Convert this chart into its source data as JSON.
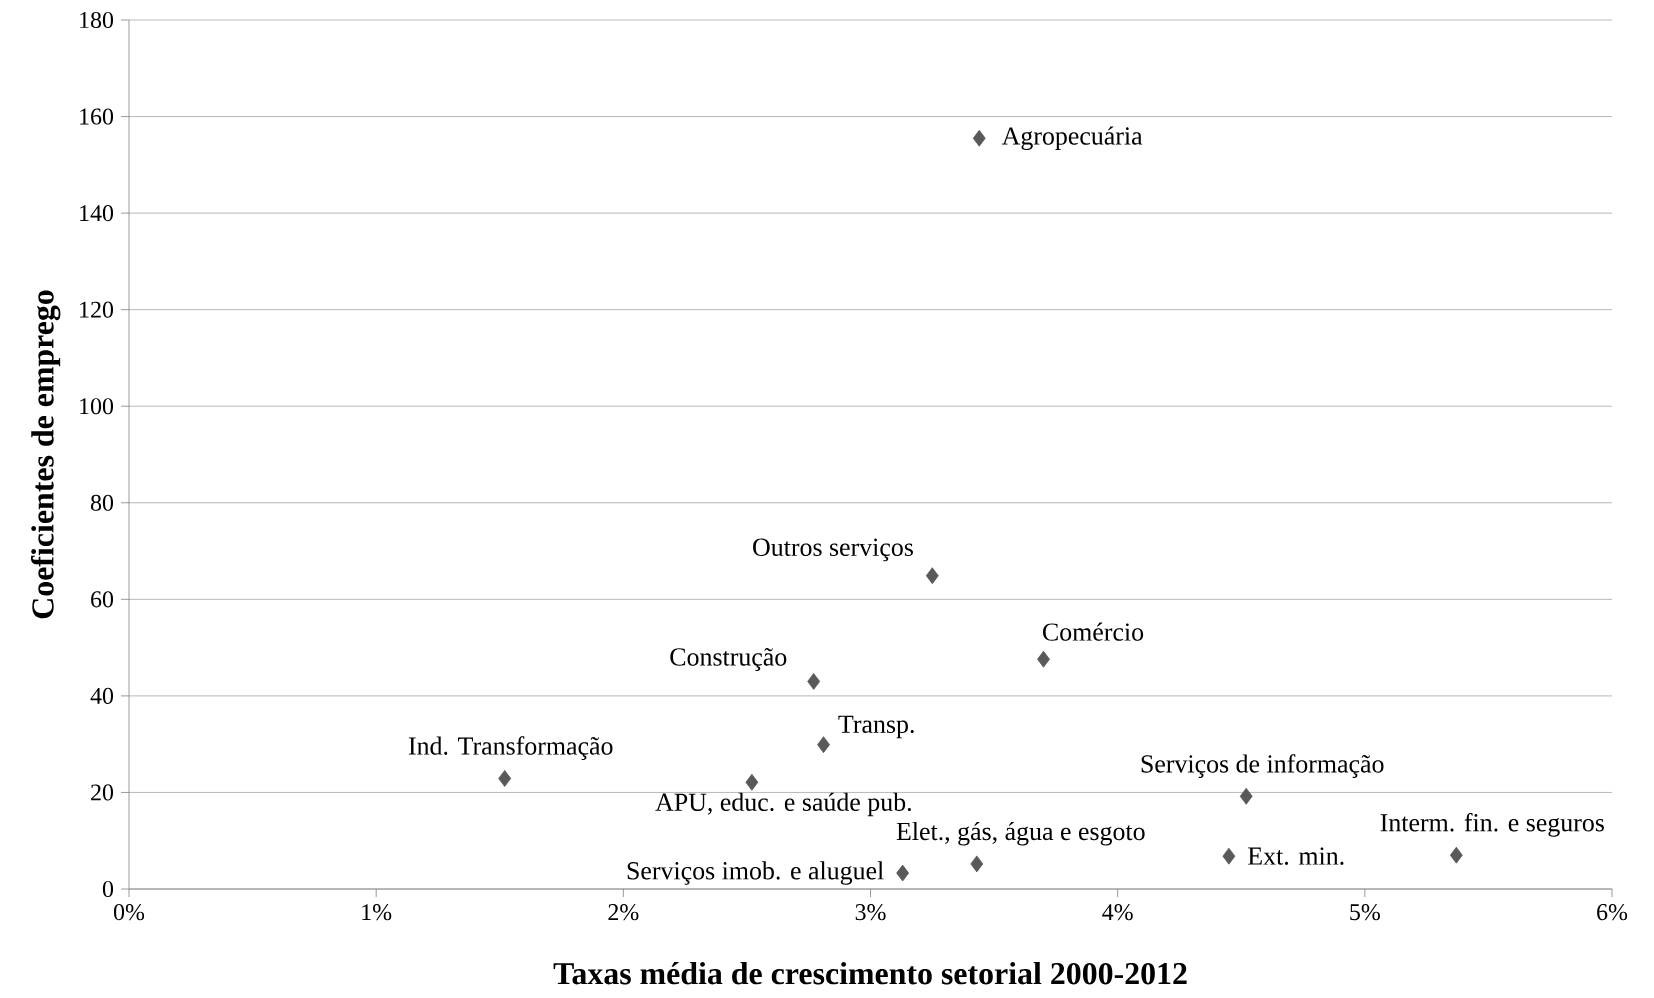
{
  "chart_data": {
    "type": "scatter",
    "xlabel": "Taxas média de crescimento setorial 2000-2012",
    "ylabel": "Coeficientes de emprego",
    "x": [
      3.44,
      3.25,
      3.7,
      2.77,
      2.81,
      1.52,
      2.52,
      4.52,
      5.37,
      4.45,
      3.43,
      3.13
    ],
    "series": [
      {
        "color": "#595959",
        "values": [
          155.5,
          64.9,
          47.6,
          43.0,
          29.9,
          22.9,
          22.1,
          19.2,
          7.0,
          6.8,
          5.2,
          3.3
        ]
      }
    ],
    "annotations": [
      {
        "text": "Agropecuária",
        "x": 3.44,
        "y": 155.5
      },
      {
        "text": "Outros serviços",
        "x": 3.25,
        "y": 64.9
      },
      {
        "text": "Comércio",
        "x": 3.7,
        "y": 47.6
      },
      {
        "text": "Construção",
        "x": 2.77,
        "y": 43.0
      },
      {
        "text": "Transp.",
        "x": 2.81,
        "y": 29.9
      },
      {
        "text": "Ind. Transformação",
        "x": 1.52,
        "y": 22.9
      },
      {
        "text": "APU, educ. e saúde pub.",
        "x": 2.52,
        "y": 22.1
      },
      {
        "text": "Serviços de informação",
        "x": 4.52,
        "y": 19.2
      },
      {
        "text": "Interm. fin. e seguros",
        "x": 5.37,
        "y": 7.0
      },
      {
        "text": "Ext. min.",
        "x": 4.45,
        "y": 6.8
      },
      {
        "text": "Elet., gás, água e esgoto",
        "x": 3.43,
        "y": 5.2
      },
      {
        "text": "Serviços imob. e aluguel",
        "x": 3.13,
        "y": 3.3
      }
    ],
    "xlim": [
      0,
      6
    ],
    "ylim": [
      0,
      180
    ],
    "xticks": [
      {
        "value": 0,
        "label": "0%"
      },
      {
        "value": 1,
        "label": "1%"
      },
      {
        "value": 2,
        "label": "2%"
      },
      {
        "value": 3,
        "label": "3%"
      },
      {
        "value": 4,
        "label": "4%"
      },
      {
        "value": 5,
        "label": "5%"
      },
      {
        "value": 6,
        "label": "6%"
      }
    ],
    "yticks": [
      0,
      20,
      40,
      60,
      80,
      100,
      120,
      140,
      160,
      180
    ],
    "grid": "y",
    "marker": "diamond"
  }
}
